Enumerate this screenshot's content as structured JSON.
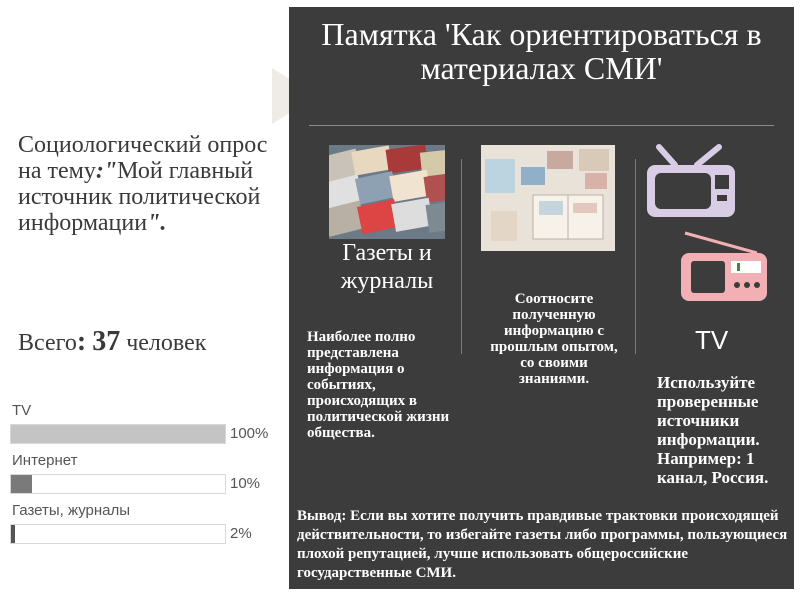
{
  "survey": {
    "prefix": "Социологический опрос на тему",
    "colon_quote": ":\"",
    "topic": "Мой главный источник политической информации",
    "end_quote": "\"."
  },
  "total": {
    "label": "Всего",
    "colon": ":",
    "count": "37",
    "unit": "человек"
  },
  "chart_data": {
    "type": "bar",
    "categories": [
      "TV",
      "Интернет",
      "Газеты, журналы"
    ],
    "values": [
      100,
      10,
      2
    ],
    "value_labels": [
      "100%",
      "10%",
      "2%"
    ],
    "ylim": [
      0,
      100
    ],
    "colors": [
      "#c4c4c4",
      "#7a7a7a",
      "#555555"
    ]
  },
  "memo": {
    "title": "Памятка 'Как ориентироваться в материалах СМИ'",
    "col1": {
      "heading": "Газеты и журналы",
      "text": "Наиболее полно представлена информация о событиях, происходящих в политической жизни общества."
    },
    "col2": {
      "text": "Соотносите полученную информацию с прошлым опытом, со своими знаниями."
    },
    "col3": {
      "heading": "TV",
      "text": "Используйте проверенные источники информации. Например: 1 канал, Россия."
    },
    "conclusion": "Вывод: Если вы хотите получить правдивые трактовки происходящей действительности, то избегайте газеты либо программы, пользующиеся плохой репутацией, лучше использовать общероссийские государственные СМИ."
  },
  "colors": {
    "panel": "#3c3c3c",
    "tv_icon": "#d9cde6",
    "radio_icon": "#f2b0b5"
  },
  "icons": [
    "newspapers-photo",
    "desk-photo",
    "tv-icon",
    "radio-icon",
    "arrow-icon"
  ]
}
